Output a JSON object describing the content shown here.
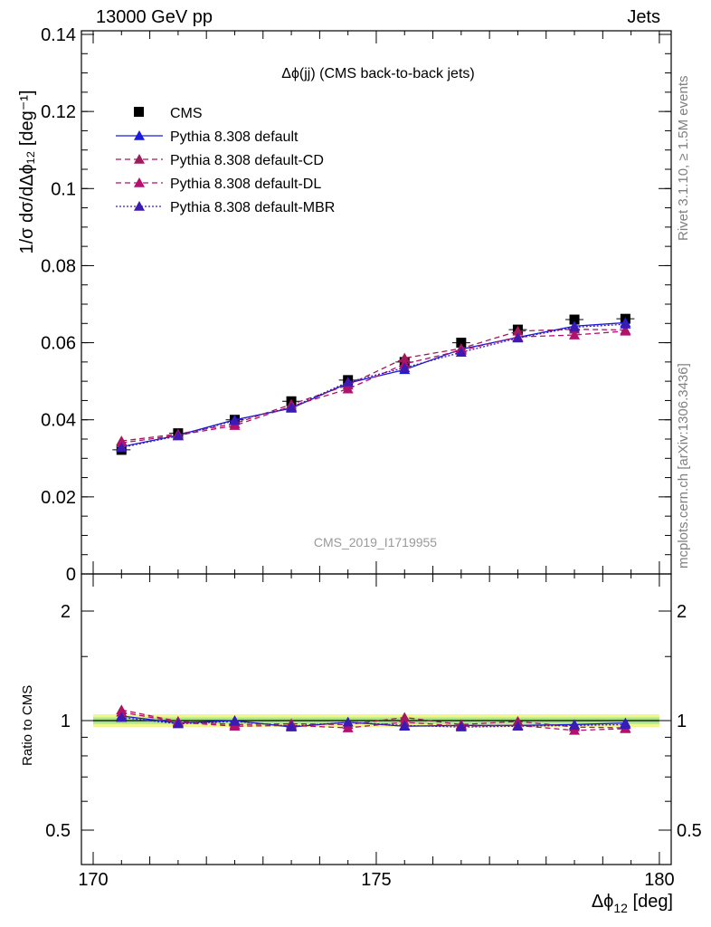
{
  "header": {
    "left": "13000 GeV pp",
    "right": "Jets"
  },
  "side_labels": {
    "rivet": "Rivet 3.1.10, ≥ 1.5M events",
    "mcplots": "mcplots.cern.ch [arXiv:1306.3436]"
  },
  "plot_title": "Δϕ(jj) (CMS back-to-back jets)",
  "watermark": "CMS_2019_I1719955",
  "axes": {
    "y_main_label": "1/σ dσ/dΔϕ₁₂ [deg⁻¹]",
    "y_ratio_label": "Ratio to CMS",
    "x_label": "Δϕ",
    "x_label_sub": "12",
    "x_label_unit": " [deg]"
  },
  "chart_data": [
    {
      "type": "scatter",
      "title": "Δϕ(jj) (CMS back-to-back jets)",
      "xlabel": "Δϕ_12 [deg]",
      "ylabel": "1/σ dσ/dΔϕ_12 [deg^-1]",
      "xlim": [
        170,
        180
      ],
      "ylim": [
        0,
        0.14
      ],
      "xticks": [
        "170",
        "175",
        "180"
      ],
      "yticks": [
        "0",
        "0.02",
        "0.04",
        "0.06",
        "0.08",
        "0.1",
        "0.12",
        "0.14"
      ],
      "legend_position": "top-left",
      "x": [
        170.5,
        171.5,
        172.5,
        173.5,
        174.5,
        175.5,
        176.5,
        177.5,
        178.5,
        179.4
      ],
      "series": [
        {
          "name": "CMS",
          "color": "#000000",
          "marker": "square",
          "values": [
            0.0322,
            0.0365,
            0.04,
            0.0448,
            0.0503,
            0.055,
            0.06,
            0.0634,
            0.066,
            0.0662
          ]
        },
        {
          "name": "Pythia 8.308 default",
          "color": "#1a1adb",
          "marker": "triangle",
          "line": "solid",
          "values": [
            0.033,
            0.036,
            0.04,
            0.043,
            0.0495,
            0.053,
            0.0583,
            0.0614,
            0.0643,
            0.0652
          ]
        },
        {
          "name": "Pythia 8.308 default-CD",
          "color": "#9e1a5a",
          "marker": "triangle",
          "line": "dashed",
          "values": [
            0.0345,
            0.0363,
            0.039,
            0.044,
            0.049,
            0.056,
            0.0585,
            0.063,
            0.0635,
            0.0633
          ]
        },
        {
          "name": "Pythia 8.308 default-DL",
          "color": "#b4106e",
          "marker": "triangle",
          "line": "dashed",
          "values": [
            0.034,
            0.036,
            0.0385,
            0.0435,
            0.048,
            0.0545,
            0.058,
            0.0615,
            0.062,
            0.063
          ]
        },
        {
          "name": "Pythia 8.308 default-MBR",
          "color": "#3d1ab4",
          "marker": "triangle",
          "line": "dotted",
          "values": [
            0.0328,
            0.0358,
            0.0398,
            0.0432,
            0.0498,
            0.0535,
            0.0575,
            0.0612,
            0.064,
            0.0648
          ]
        }
      ]
    },
    {
      "type": "scatter",
      "ylabel": "Ratio to CMS",
      "xlabel": "Δϕ_12 [deg]",
      "xlim": [
        170,
        180
      ],
      "ylim": [
        0.4,
        2.35
      ],
      "yscale": "log",
      "yticks": [
        "0.5",
        "1",
        "2"
      ],
      "x": [
        170.5,
        171.5,
        172.5,
        173.5,
        174.5,
        175.5,
        176.5,
        177.5,
        178.5,
        179.4
      ],
      "band": {
        "name": "CMS uncertainty",
        "inner": 0.02,
        "outer": 0.04,
        "inner_color": "#a8e68c",
        "outer_color": "#f0f58c"
      },
      "series": [
        {
          "name": "Pythia 8.308 default",
          "color": "#1a1adb",
          "line": "solid",
          "values": [
            1.03,
            0.985,
            1.0,
            0.96,
            0.99,
            0.965,
            0.97,
            0.97,
            0.975,
            0.985
          ]
        },
        {
          "name": "Pythia 8.308 default-CD",
          "color": "#9e1a5a",
          "line": "dashed",
          "values": [
            1.07,
            0.995,
            0.975,
            0.98,
            0.975,
            1.02,
            0.975,
            0.995,
            0.96,
            0.955
          ]
        },
        {
          "name": "Pythia 8.308 default-DL",
          "color": "#b4106e",
          "line": "dashed",
          "values": [
            1.055,
            0.99,
            0.965,
            0.97,
            0.955,
            0.99,
            0.965,
            0.97,
            0.94,
            0.95
          ]
        },
        {
          "name": "Pythia 8.308 default-MBR",
          "color": "#3d1ab4",
          "line": "dotted",
          "values": [
            1.02,
            0.98,
            0.995,
            0.965,
            0.99,
            0.97,
            0.96,
            0.965,
            0.97,
            0.975
          ]
        }
      ]
    }
  ]
}
